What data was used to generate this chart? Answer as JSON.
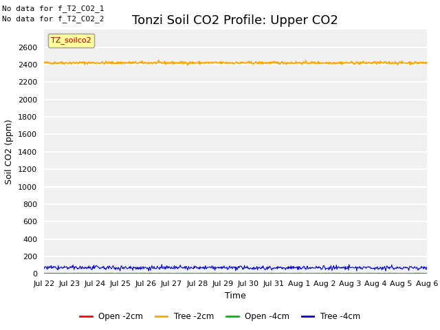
{
  "title": "Tonzi Soil CO2 Profile: Upper CO2",
  "ylabel": "Soil CO2 (ppm)",
  "xlabel": "Time",
  "annotations": [
    "No data for f_T2_CO2_1",
    "No data for f_T2_CO2_2"
  ],
  "legend_label": "TZ_soilco2",
  "ylim": [
    0,
    2800
  ],
  "yticks": [
    0,
    200,
    400,
    600,
    800,
    1000,
    1200,
    1400,
    1600,
    1800,
    2000,
    2200,
    2400,
    2600
  ],
  "n_points": 700,
  "tree_2cm_value": 2420,
  "tree_2cm_noise": 8,
  "open_4cm_value": 5,
  "open_4cm_noise": 1,
  "tree_4cm_value": 70,
  "tree_4cm_noise": 12,
  "color_open_2cm": "#ff0000",
  "color_tree_2cm": "#ffa500",
  "color_open_4cm": "#00bb00",
  "color_tree_4cm": "#0000cc",
  "background_color": "#f0f0f0",
  "grid_color": "#ffffff",
  "title_fontsize": 13,
  "label_fontsize": 9,
  "tick_fontsize": 8,
  "xtick_labels": [
    "Jul 22",
    "Jul 23",
    "Jul 24",
    "Jul 25",
    "Jul 26",
    "Jul 27",
    "Jul 28",
    "Jul 29",
    "Jul 30",
    "Jul 31",
    "Aug 1",
    "Aug 2",
    "Aug 3",
    "Aug 4",
    "Aug 5",
    "Aug 6"
  ],
  "legend_entries": [
    "Open -2cm",
    "Tree -2cm",
    "Open -4cm",
    "Tree -4cm"
  ]
}
